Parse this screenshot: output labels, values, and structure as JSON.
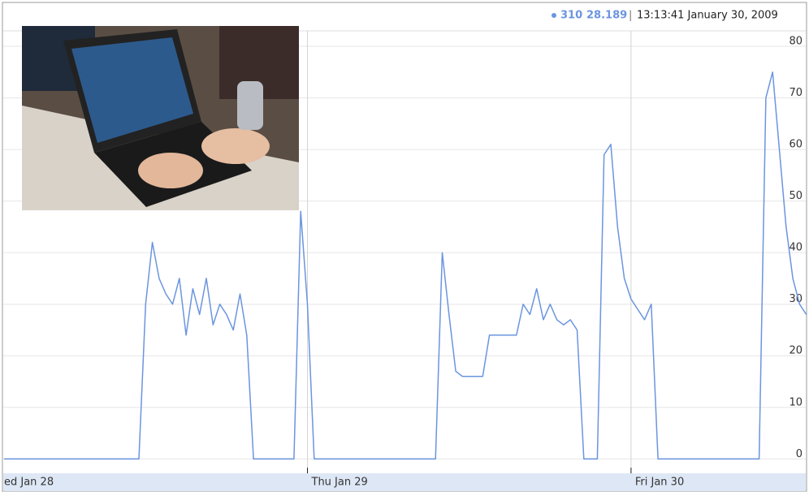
{
  "chart_data": {
    "type": "line",
    "legend_name": "310",
    "current_value": "28.189",
    "separator": "|",
    "timestamp": "13:13:41 January 30, 2009",
    "categories": [
      "ed Jan 28",
      null,
      null,
      null,
      null,
      null,
      null,
      null,
      null,
      null,
      null,
      null,
      null,
      null,
      null,
      null,
      null,
      null,
      null,
      null,
      null,
      null,
      null,
      null,
      null,
      null,
      null,
      null,
      null,
      null,
      null,
      null,
      null,
      null,
      null,
      null,
      null,
      null,
      null,
      null,
      null,
      null,
      null,
      null,
      null,
      "Thu Jan 29",
      null,
      null,
      null,
      null,
      null,
      null,
      null,
      null,
      null,
      null,
      null,
      null,
      null,
      null,
      null,
      null,
      null,
      null,
      null,
      null,
      null,
      null,
      null,
      null,
      null,
      null,
      null,
      null,
      null,
      null,
      null,
      null,
      null,
      null,
      null,
      null,
      null,
      null,
      null,
      null,
      null,
      null,
      null,
      null,
      null,
      null,
      null,
      "Fri Jan 30",
      null,
      null,
      null,
      null,
      null,
      null,
      null,
      null,
      null,
      null,
      null,
      null,
      null,
      null,
      null,
      null,
      null,
      null,
      null,
      null,
      null,
      null,
      null,
      null,
      null,
      null
    ],
    "series": [
      {
        "name": "310",
        "color": "#6b95df",
        "values": [
          0,
          0,
          0,
          0,
          0,
          0,
          0,
          0,
          0,
          0,
          0,
          0,
          0,
          0,
          0,
          0,
          0,
          0,
          0,
          0,
          0,
          30,
          42,
          35,
          32,
          30,
          35,
          24,
          33,
          28,
          35,
          26,
          30,
          28,
          25,
          32,
          24,
          0,
          0,
          0,
          0,
          0,
          0,
          0,
          48,
          30,
          0,
          0,
          0,
          0,
          0,
          0,
          0,
          0,
          0,
          0,
          0,
          0,
          0,
          0,
          0,
          0,
          0,
          0,
          0,
          40,
          28,
          17,
          16,
          16,
          16,
          16,
          24,
          24,
          24,
          24,
          24,
          30,
          28,
          33,
          27,
          30,
          27,
          26,
          27,
          25,
          0,
          0,
          0,
          59,
          61,
          45,
          35,
          31,
          29,
          27,
          30,
          0,
          0,
          0,
          0,
          0,
          0,
          0,
          0,
          0,
          0,
          0,
          0,
          0,
          0,
          0,
          0,
          70,
          75,
          60,
          45,
          35,
          30,
          28
        ]
      }
    ],
    "ylim": [
      -2,
      83
    ],
    "yticks": [
      0,
      10,
      20,
      30,
      40,
      50,
      60,
      70,
      80
    ],
    "grid": true
  }
}
